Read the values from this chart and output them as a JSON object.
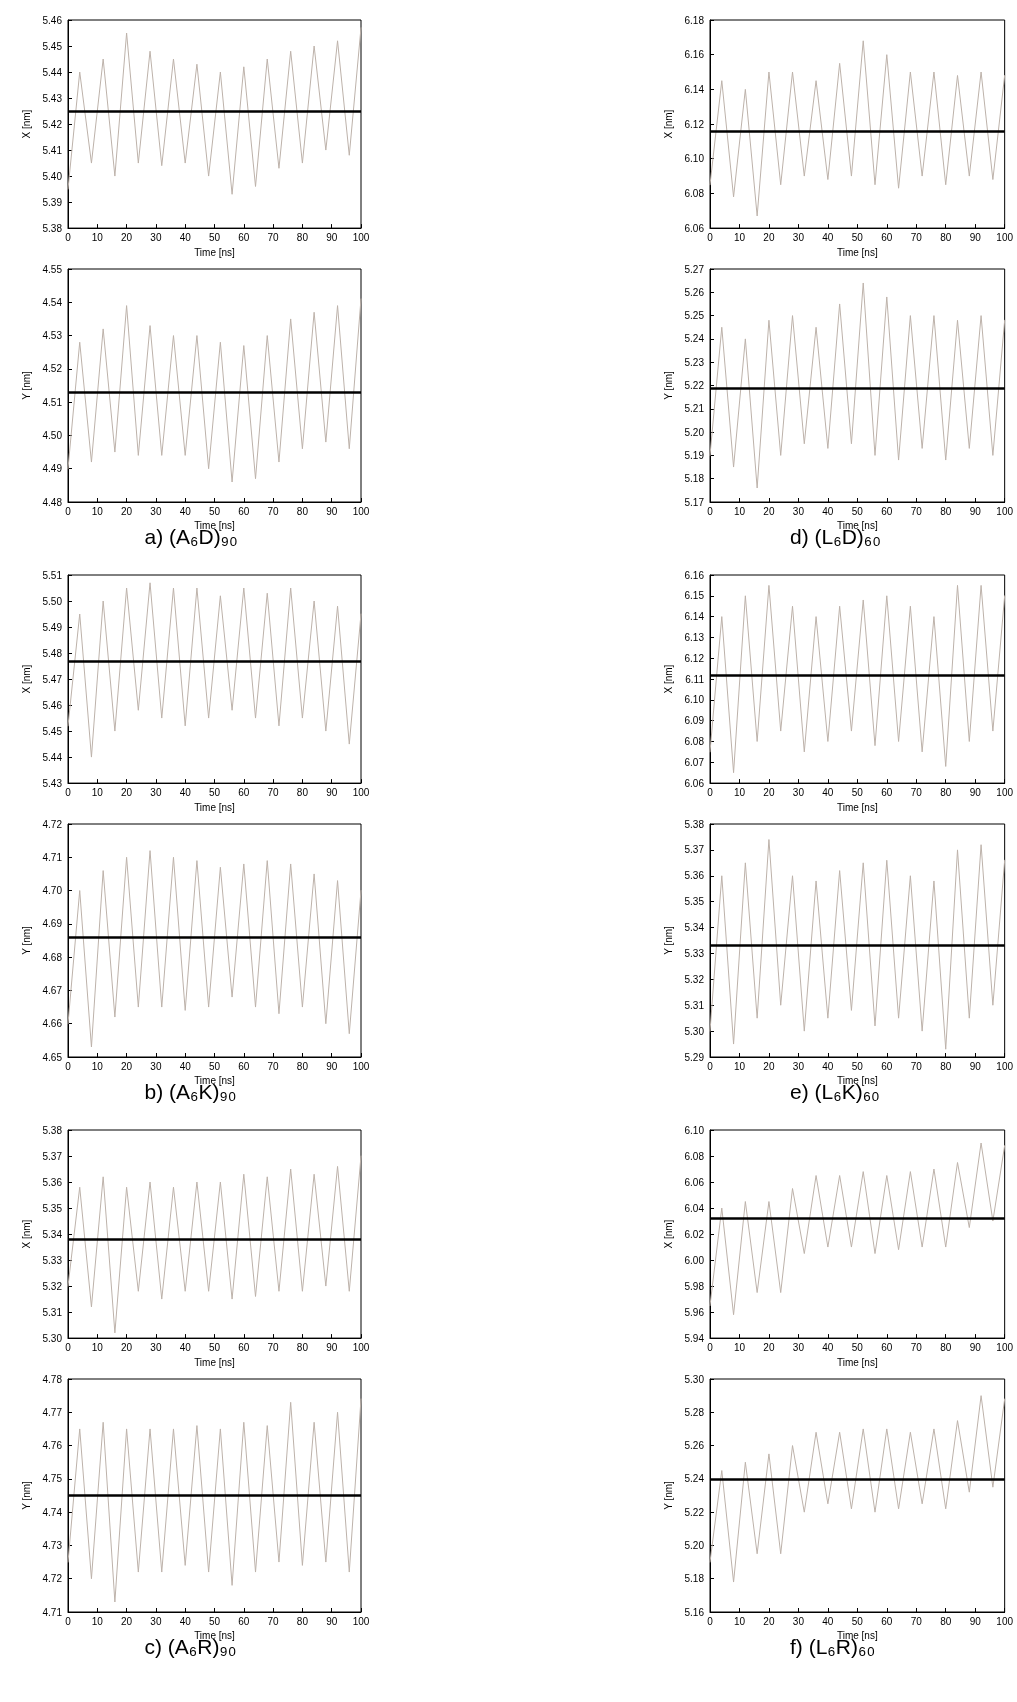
{
  "chart_data": [
    {
      "type": "line",
      "xlabel": "Time [ns]",
      "ylabel": "X [nm]",
      "marker": "none",
      "line_style": "solid",
      "grid": false,
      "x": [
        0,
        4,
        8,
        12,
        16,
        20,
        24,
        28,
        32,
        36,
        40,
        44,
        48,
        52,
        56,
        60,
        64,
        68,
        72,
        76,
        80,
        84,
        88,
        92,
        96,
        100
      ],
      "xlim": [
        0,
        100
      ],
      "xticks": [
        0,
        10,
        20,
        30,
        40,
        50,
        60,
        70,
        80,
        90,
        100
      ],
      "ylim": [
        5.38,
        5.46
      ],
      "yticks": [
        5.38,
        5.39,
        {
          "value": 5.4,
          "label": "5.40"
        },
        5.41,
        5.42,
        5.43,
        5.44,
        5.45,
        5.46
      ],
      "series": [
        {
          "color": "#bdb2aa",
          "values": [
            5.395,
            5.44,
            5.405,
            5.445,
            5.4,
            5.455,
            5.405,
            5.448,
            5.404,
            5.445,
            5.405,
            5.443,
            5.4,
            5.44,
            5.393,
            5.442,
            5.396,
            5.445,
            5.403,
            5.448,
            5.405,
            5.45,
            5.41,
            5.452,
            5.408,
            5.457
          ]
        }
      ],
      "ref_lines": [
        {
          "axis": "y",
          "value": 5.425,
          "color": "#000000"
        }
      ]
    },
    {
      "type": "line",
      "xlabel": "Time [ns]",
      "ylabel": "X [nm]",
      "marker": "none",
      "line_style": "solid",
      "grid": false,
      "x": [
        0,
        4,
        8,
        12,
        16,
        20,
        24,
        28,
        32,
        36,
        40,
        44,
        48,
        52,
        56,
        60,
        64,
        68,
        72,
        76,
        80,
        84,
        88,
        92,
        96,
        100
      ],
      "xlim": [
        0,
        100
      ],
      "xticks": [
        0,
        10,
        20,
        30,
        40,
        50,
        60,
        70,
        80,
        90,
        100
      ],
      "ylim": [
        6.06,
        6.18
      ],
      "yticks": [
        6.06,
        6.08,
        {
          "value": 6.1,
          "label": "6.10"
        },
        6.12,
        6.14,
        6.16,
        6.18
      ],
      "series": [
        {
          "color": "#bdb2aa",
          "values": [
            6.085,
            6.145,
            6.078,
            6.14,
            6.067,
            6.15,
            6.085,
            6.15,
            6.09,
            6.145,
            6.088,
            6.155,
            6.09,
            6.168,
            6.085,
            6.16,
            6.083,
            6.15,
            6.09,
            6.15,
            6.085,
            6.148,
            6.09,
            6.15,
            6.088,
            6.148
          ]
        }
      ],
      "ref_lines": [
        {
          "axis": "y",
          "value": 6.116,
          "color": "#000000"
        }
      ]
    },
    {
      "type": "line",
      "xlabel": "Time [ns]",
      "ylabel": "Y [nm]",
      "marker": "none",
      "line_style": "solid",
      "grid": false,
      "x": [
        0,
        4,
        8,
        12,
        16,
        20,
        24,
        28,
        32,
        36,
        40,
        44,
        48,
        52,
        56,
        60,
        64,
        68,
        72,
        76,
        80,
        84,
        88,
        92,
        96,
        100
      ],
      "xlim": [
        0,
        100
      ],
      "xticks": [
        0,
        10,
        20,
        30,
        40,
        50,
        60,
        70,
        80,
        90,
        100
      ],
      "ylim": [
        4.48,
        4.55
      ],
      "yticks": [
        4.48,
        4.49,
        {
          "value": 4.5,
          "label": "4.50"
        },
        4.51,
        4.52,
        4.53,
        4.54,
        4.55
      ],
      "series": [
        {
          "color": "#bdb2aa",
          "values": [
            4.49,
            4.528,
            4.492,
            4.532,
            4.495,
            4.539,
            4.494,
            4.533,
            4.494,
            4.53,
            4.494,
            4.53,
            4.49,
            4.528,
            4.486,
            4.527,
            4.487,
            4.53,
            4.492,
            4.535,
            4.496,
            4.537,
            4.498,
            4.539,
            4.496,
            4.541
          ]
        }
      ],
      "ref_lines": [
        {
          "axis": "y",
          "value": 4.513,
          "color": "#000000"
        }
      ],
      "annotations": [
        "a) (A₆D)₉₀"
      ]
    },
    {
      "type": "line",
      "xlabel": "Time [ns]",
      "ylabel": "Y [nm]",
      "marker": "none",
      "line_style": "solid",
      "grid": false,
      "x": [
        0,
        4,
        8,
        12,
        16,
        20,
        24,
        28,
        32,
        36,
        40,
        44,
        48,
        52,
        56,
        60,
        64,
        68,
        72,
        76,
        80,
        84,
        88,
        92,
        96,
        100
      ],
      "xlim": [
        0,
        100
      ],
      "xticks": [
        0,
        10,
        20,
        30,
        40,
        50,
        60,
        70,
        80,
        90,
        100
      ],
      "ylim": [
        5.17,
        5.27
      ],
      "yticks": [
        5.17,
        5.18,
        5.19,
        {
          "value": 5.2,
          "label": "5.20"
        },
        5.21,
        5.22,
        5.23,
        5.24,
        5.25,
        5.26,
        5.27
      ],
      "series": [
        {
          "color": "#bdb2aa",
          "values": [
            5.19,
            5.245,
            5.185,
            5.24,
            5.176,
            5.248,
            5.19,
            5.25,
            5.195,
            5.245,
            5.193,
            5.255,
            5.195,
            5.264,
            5.19,
            5.258,
            5.188,
            5.25,
            5.193,
            5.25,
            5.188,
            5.248,
            5.193,
            5.25,
            5.19,
            5.248
          ]
        }
      ],
      "ref_lines": [
        {
          "axis": "y",
          "value": 5.219,
          "color": "#000000"
        }
      ],
      "annotations": [
        "d) (L₆D)₆₀"
      ]
    },
    {
      "type": "line",
      "xlabel": "Time [ns]",
      "ylabel": "X [nm]",
      "marker": "none",
      "line_style": "solid",
      "grid": false,
      "x": [
        0,
        4,
        8,
        12,
        16,
        20,
        24,
        28,
        32,
        36,
        40,
        44,
        48,
        52,
        56,
        60,
        64,
        68,
        72,
        76,
        80,
        84,
        88,
        92,
        96,
        100
      ],
      "xlim": [
        0,
        100
      ],
      "xticks": [
        0,
        10,
        20,
        30,
        40,
        50,
        60,
        70,
        80,
        90,
        100
      ],
      "ylim": [
        5.43,
        5.51
      ],
      "yticks": [
        5.43,
        5.44,
        5.45,
        5.46,
        5.47,
        5.48,
        5.49,
        {
          "value": 5.5,
          "label": "5.50"
        },
        5.51
      ],
      "series": [
        {
          "color": "#bdb2aa",
          "values": [
            5.452,
            5.495,
            5.44,
            5.5,
            5.45,
            5.505,
            5.458,
            5.507,
            5.455,
            5.505,
            5.452,
            5.505,
            5.455,
            5.502,
            5.458,
            5.505,
            5.455,
            5.503,
            5.452,
            5.505,
            5.455,
            5.5,
            5.45,
            5.498,
            5.445,
            5.495
          ]
        }
      ],
      "ref_lines": [
        {
          "axis": "y",
          "value": 5.477,
          "color": "#000000"
        }
      ]
    },
    {
      "type": "line",
      "xlabel": "Time [ns]",
      "ylabel": "X [nm]",
      "marker": "none",
      "line_style": "solid",
      "grid": false,
      "x": [
        0,
        4,
        8,
        12,
        16,
        20,
        24,
        28,
        32,
        36,
        40,
        44,
        48,
        52,
        56,
        60,
        64,
        68,
        72,
        76,
        80,
        84,
        88,
        92,
        96,
        100
      ],
      "xlim": [
        0,
        100
      ],
      "xticks": [
        0,
        10,
        20,
        30,
        40,
        50,
        60,
        70,
        80,
        90,
        100
      ],
      "ylim": [
        6.06,
        6.16
      ],
      "yticks": [
        6.06,
        6.07,
        6.08,
        6.09,
        {
          "value": 6.1,
          "label": "6.10"
        },
        6.11,
        6.12,
        6.13,
        6.14,
        6.15,
        6.16
      ],
      "series": [
        {
          "color": "#bdb2aa",
          "values": [
            6.075,
            6.14,
            6.065,
            6.15,
            6.08,
            6.155,
            6.085,
            6.145,
            6.075,
            6.14,
            6.08,
            6.145,
            6.085,
            6.148,
            6.078,
            6.15,
            6.08,
            6.145,
            6.075,
            6.14,
            6.068,
            6.155,
            6.08,
            6.155,
            6.085,
            6.15
          ]
        }
      ],
      "ref_lines": [
        {
          "axis": "y",
          "value": 6.112,
          "color": "#000000"
        }
      ]
    },
    {
      "type": "line",
      "xlabel": "Time [ns]",
      "ylabel": "Y [nm]",
      "marker": "none",
      "line_style": "solid",
      "grid": false,
      "x": [
        0,
        4,
        8,
        12,
        16,
        20,
        24,
        28,
        32,
        36,
        40,
        44,
        48,
        52,
        56,
        60,
        64,
        68,
        72,
        76,
        80,
        84,
        88,
        92,
        96,
        100
      ],
      "xlim": [
        0,
        100
      ],
      "xticks": [
        0,
        10,
        20,
        30,
        40,
        50,
        60,
        70,
        80,
        90,
        100
      ],
      "ylim": [
        4.65,
        4.72
      ],
      "yticks": [
        4.65,
        4.66,
        4.67,
        4.68,
        4.69,
        {
          "value": 4.7,
          "label": "4.70"
        },
        4.71,
        4.72
      ],
      "series": [
        {
          "color": "#bdb2aa",
          "values": [
            4.66,
            4.7,
            4.653,
            4.706,
            4.662,
            4.71,
            4.665,
            4.712,
            4.665,
            4.71,
            4.664,
            4.709,
            4.665,
            4.707,
            4.668,
            4.708,
            4.665,
            4.709,
            4.663,
            4.708,
            4.665,
            4.705,
            4.66,
            4.703,
            4.657,
            4.7
          ]
        }
      ],
      "ref_lines": [
        {
          "axis": "y",
          "value": 4.686,
          "color": "#000000"
        }
      ],
      "annotations": [
        "b) (A₆K)₉₀"
      ]
    },
    {
      "type": "line",
      "xlabel": "Time [ns]",
      "ylabel": "Y [nm]",
      "marker": "none",
      "line_style": "solid",
      "grid": false,
      "x": [
        0,
        4,
        8,
        12,
        16,
        20,
        24,
        28,
        32,
        36,
        40,
        44,
        48,
        52,
        56,
        60,
        64,
        68,
        72,
        76,
        80,
        84,
        88,
        92,
        96,
        100
      ],
      "xlim": [
        0,
        100
      ],
      "xticks": [
        0,
        10,
        20,
        30,
        40,
        50,
        60,
        70,
        80,
        90,
        100
      ],
      "ylim": [
        5.29,
        5.38
      ],
      "yticks": [
        5.29,
        {
          "value": 5.3,
          "label": "5.30"
        },
        5.31,
        5.32,
        5.33,
        5.34,
        5.35,
        5.36,
        5.37,
        5.38
      ],
      "series": [
        {
          "color": "#bdb2aa",
          "values": [
            5.3,
            5.36,
            5.295,
            5.365,
            5.305,
            5.374,
            5.31,
            5.36,
            5.3,
            5.358,
            5.305,
            5.362,
            5.308,
            5.365,
            5.302,
            5.366,
            5.305,
            5.36,
            5.3,
            5.358,
            5.293,
            5.37,
            5.305,
            5.372,
            5.31,
            5.366
          ]
        }
      ],
      "ref_lines": [
        {
          "axis": "y",
          "value": 5.333,
          "color": "#000000"
        }
      ],
      "annotations": [
        "e) (L₆K)₆₀"
      ]
    },
    {
      "type": "line",
      "xlabel": "Time [ns]",
      "ylabel": "X [nm]",
      "marker": "none",
      "line_style": "solid",
      "grid": false,
      "x": [
        0,
        4,
        8,
        12,
        16,
        20,
        24,
        28,
        32,
        36,
        40,
        44,
        48,
        52,
        56,
        60,
        64,
        68,
        72,
        76,
        80,
        84,
        88,
        92,
        96,
        100
      ],
      "xlim": [
        0,
        100
      ],
      "xticks": [
        0,
        10,
        20,
        30,
        40,
        50,
        60,
        70,
        80,
        90,
        100
      ],
      "ylim": [
        5.3,
        5.38
      ],
      "yticks": [
        {
          "value": 5.3,
          "label": "5.30"
        },
        5.31,
        5.32,
        5.33,
        5.34,
        5.35,
        5.36,
        5.37,
        5.38
      ],
      "series": [
        {
          "color": "#bdb2aa",
          "values": [
            5.32,
            5.358,
            5.312,
            5.362,
            5.302,
            5.358,
            5.318,
            5.36,
            5.315,
            5.358,
            5.318,
            5.36,
            5.318,
            5.36,
            5.315,
            5.363,
            5.316,
            5.362,
            5.318,
            5.365,
            5.318,
            5.363,
            5.32,
            5.366,
            5.318,
            5.37
          ]
        }
      ],
      "ref_lines": [
        {
          "axis": "y",
          "value": 5.338,
          "color": "#000000"
        }
      ]
    },
    {
      "type": "line",
      "xlabel": "Time [ns]",
      "ylabel": "X [nm]",
      "marker": "none",
      "line_style": "solid",
      "grid": false,
      "x": [
        0,
        4,
        8,
        12,
        16,
        20,
        24,
        28,
        32,
        36,
        40,
        44,
        48,
        52,
        56,
        60,
        64,
        68,
        72,
        76,
        80,
        84,
        88,
        92,
        96,
        100
      ],
      "xlim": [
        0,
        100
      ],
      "xticks": [
        0,
        10,
        20,
        30,
        40,
        50,
        60,
        70,
        80,
        90,
        100
      ],
      "ylim": [
        5.94,
        6.1
      ],
      "yticks": [
        5.94,
        5.96,
        5.98,
        {
          "value": 6,
          "label": "6.00"
        },
        6.02,
        6.04,
        6.06,
        6.08,
        {
          "value": 6.1,
          "label": "6.10"
        }
      ],
      "series": [
        {
          "color": "#bdb2aa",
          "values": [
            5.965,
            6.04,
            5.958,
            6.045,
            5.975,
            6.045,
            5.975,
            6.055,
            6.005,
            6.065,
            6.01,
            6.065,
            6.01,
            6.068,
            6.005,
            6.065,
            6.008,
            6.068,
            6.01,
            6.07,
            6.01,
            6.075,
            6.025,
            6.09,
            6.03,
            6.088
          ]
        }
      ],
      "ref_lines": [
        {
          "axis": "y",
          "value": 6.032,
          "color": "#000000"
        }
      ]
    },
    {
      "type": "line",
      "xlabel": "Time [ns]",
      "ylabel": "Y [nm]",
      "marker": "none",
      "line_style": "solid",
      "grid": false,
      "x": [
        0,
        4,
        8,
        12,
        16,
        20,
        24,
        28,
        32,
        36,
        40,
        44,
        48,
        52,
        56,
        60,
        64,
        68,
        72,
        76,
        80,
        84,
        88,
        92,
        96,
        100
      ],
      "xlim": [
        0,
        100
      ],
      "xticks": [
        0,
        10,
        20,
        30,
        40,
        50,
        60,
        70,
        80,
        90,
        100
      ],
      "ylim": [
        4.71,
        4.78
      ],
      "yticks": [
        4.71,
        4.72,
        4.73,
        4.74,
        4.75,
        4.76,
        4.77,
        4.78
      ],
      "series": [
        {
          "color": "#bdb2aa",
          "values": [
            4.725,
            4.765,
            4.72,
            4.767,
            4.713,
            4.765,
            4.722,
            4.765,
            4.722,
            4.765,
            4.724,
            4.766,
            4.722,
            4.765,
            4.718,
            4.767,
            4.722,
            4.766,
            4.725,
            4.773,
            4.724,
            4.767,
            4.725,
            4.77,
            4.722,
            4.774
          ]
        }
      ],
      "ref_lines": [
        {
          "axis": "y",
          "value": 4.745,
          "color": "#000000"
        }
      ],
      "annotations": [
        "c) (A₆R)₉₀"
      ]
    },
    {
      "type": "line",
      "xlabel": "Time [ns]",
      "ylabel": "Y [nm]",
      "marker": "none",
      "line_style": "solid",
      "grid": false,
      "x": [
        0,
        4,
        8,
        12,
        16,
        20,
        24,
        28,
        32,
        36,
        40,
        44,
        48,
        52,
        56,
        60,
        64,
        68,
        72,
        76,
        80,
        84,
        88,
        92,
        96,
        100
      ],
      "xlim": [
        0,
        100
      ],
      "xticks": [
        0,
        10,
        20,
        30,
        40,
        50,
        60,
        70,
        80,
        90,
        100
      ],
      "ylim": [
        5.16,
        5.3
      ],
      "yticks": [
        5.16,
        5.18,
        {
          "value": 5.2,
          "label": "5.20"
        },
        5.22,
        5.24,
        5.26,
        5.28,
        {
          "value": 5.3,
          "label": "5.30"
        }
      ],
      "series": [
        {
          "color": "#bdb2aa",
          "values": [
            5.19,
            5.245,
            5.178,
            5.25,
            5.195,
            5.255,
            5.195,
            5.26,
            5.22,
            5.268,
            5.225,
            5.268,
            5.222,
            5.27,
            5.22,
            5.27,
            5.222,
            5.268,
            5.225,
            5.27,
            5.222,
            5.275,
            5.232,
            5.29,
            5.235,
            5.288
          ]
        }
      ],
      "ref_lines": [
        {
          "axis": "y",
          "value": 5.24,
          "color": "#000000"
        }
      ],
      "annotations": [
        "f) (L₆R)₆₀"
      ]
    }
  ]
}
